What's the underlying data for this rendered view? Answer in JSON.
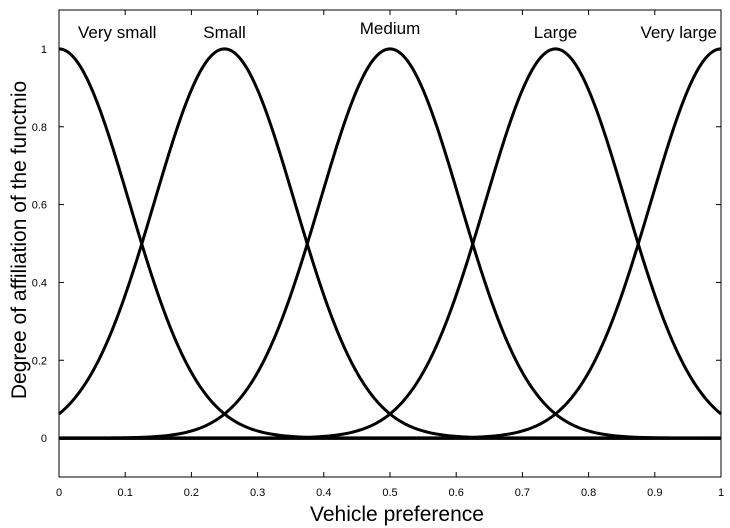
{
  "chart_data": {
    "type": "line",
    "xlabel": "Vehicle preference",
    "ylabel": "Degree of affiliation of the functnio",
    "xlim": [
      0,
      1
    ],
    "ylim": [
      -0.1,
      1.1
    ],
    "xticks": [
      0,
      0.1,
      0.2,
      0.3,
      0.4,
      0.5,
      0.6,
      0.7,
      0.8,
      0.9,
      1
    ],
    "yticks": [
      0,
      0.2,
      0.4,
      0.6,
      0.8,
      1
    ],
    "grid": false,
    "legend": "none",
    "baseline_y": 0,
    "series": [
      {
        "name": "Very small",
        "center": 0,
        "sigma": 0.106,
        "peak": 1
      },
      {
        "name": "Small",
        "center": 0.25,
        "sigma": 0.106,
        "peak": 1
      },
      {
        "name": "Medium",
        "center": 0.5,
        "sigma": 0.106,
        "peak": 1
      },
      {
        "name": "Large",
        "center": 0.75,
        "sigma": 0.106,
        "peak": 1
      },
      {
        "name": "Very large",
        "center": 1,
        "sigma": 0.106,
        "peak": 1
      }
    ],
    "line_color": "#000000"
  }
}
